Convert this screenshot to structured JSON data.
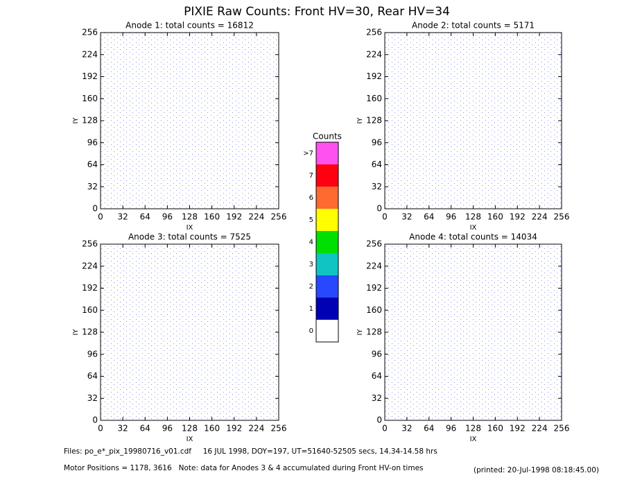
{
  "title": "PIXIE Raw Counts:  Front HV=30, Rear HV=34",
  "chart_data": [
    {
      "type": "heatmap",
      "title": "Anode 1: total counts = 16812",
      "xlabel": "IX",
      "ylabel": "IY",
      "xlim": [
        0,
        256
      ],
      "ylim": [
        0,
        256
      ],
      "xticks": [
        0,
        32,
        64,
        96,
        128,
        160,
        192,
        224,
        256
      ],
      "yticks": [
        0,
        32,
        64,
        96,
        128,
        160,
        192,
        224,
        256
      ]
    },
    {
      "type": "heatmap",
      "title": "Anode 2: total counts = 5171",
      "xlabel": "IX",
      "ylabel": "IY",
      "xlim": [
        0,
        256
      ],
      "ylim": [
        0,
        256
      ],
      "xticks": [
        0,
        32,
        64,
        96,
        128,
        160,
        192,
        224,
        256
      ],
      "yticks": [
        0,
        32,
        64,
        96,
        128,
        160,
        192,
        224,
        256
      ]
    },
    {
      "type": "heatmap",
      "title": "Anode 3: total counts = 7525",
      "xlabel": "IX",
      "ylabel": "IY",
      "xlim": [
        0,
        256
      ],
      "ylim": [
        0,
        256
      ],
      "xticks": [
        0,
        32,
        64,
        96,
        128,
        160,
        192,
        224,
        256
      ],
      "yticks": [
        0,
        32,
        64,
        96,
        128,
        160,
        192,
        224,
        256
      ]
    },
    {
      "type": "heatmap",
      "title": "Anode 4: total counts = 14034",
      "xlabel": "IX",
      "ylabel": "IY",
      "xlim": [
        0,
        256
      ],
      "ylim": [
        0,
        256
      ],
      "xticks": [
        0,
        32,
        64,
        96,
        128,
        160,
        192,
        224,
        256
      ],
      "yticks": [
        0,
        32,
        64,
        96,
        128,
        160,
        192,
        224,
        256
      ]
    }
  ],
  "colorbar": {
    "title": "Counts",
    "labels": [
      0,
      1,
      2,
      3,
      4,
      5,
      6,
      7,
      ">7"
    ],
    "colors": [
      "#ffffff",
      "#0000b4",
      "#2848ff",
      "#10c4c4",
      "#00e000",
      "#ffff00",
      "#ff6a30",
      "#ff0010",
      "#ff50f0"
    ]
  },
  "footer": {
    "files": "Files: po_e*_pix_19980716_v01.cdf     16 JUL 1998, DOY=197, UT=51640-52505 secs, 14.34-14.58 hrs",
    "note": "Motor Positions = 1178, 3616   Note: data for Anodes 3 & 4 accumulated during Front HV-on times",
    "printed": "(printed: 20-Jul-1998 08:18:45.00)"
  }
}
